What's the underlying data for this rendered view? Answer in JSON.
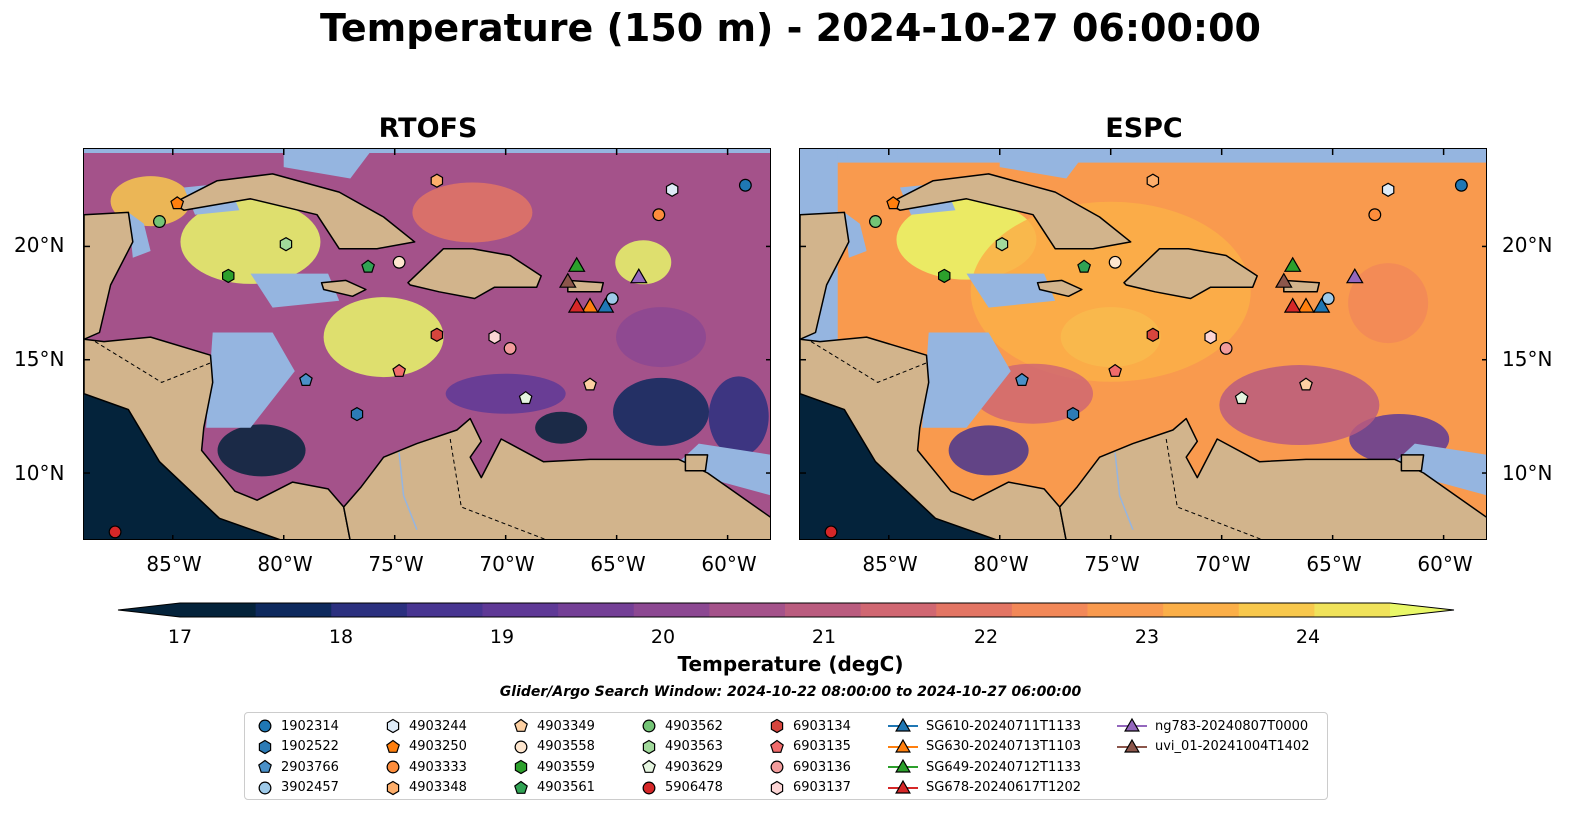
{
  "title": "Temperature (150 m) - 2024-10-27 06:00:00",
  "panels": [
    {
      "title": "RTOFS"
    },
    {
      "title": "ESPC"
    }
  ],
  "lat_labels": [
    "20°N",
    "15°N",
    "10°N"
  ],
  "lon_labels": [
    "85°W",
    "80°W",
    "75°W",
    "70°W",
    "65°W",
    "60°W"
  ],
  "colorbar": {
    "label": "Temperature (degC)",
    "ticks": [
      "17",
      "18",
      "19",
      "20",
      "21",
      "22",
      "23",
      "24"
    ],
    "colors": [
      "#04233b",
      "#0e2a5e",
      "#2b307f",
      "#483591",
      "#5f3996",
      "#743f96",
      "#8c4892",
      "#a4528a",
      "#ba5c7f",
      "#d06772",
      "#e37564",
      "#f28858",
      "#f99a4e",
      "#fbaf48",
      "#f8c84c",
      "#f0e25a",
      "#e9f868"
    ]
  },
  "search_window": "Glider/Argo Search Window: 2024-10-22 08:00:00 to 2024-10-27 06:00:00",
  "legend": [
    {
      "label": "1902314",
      "marker": "circle",
      "color": "#1f77b4"
    },
    {
      "label": "1902522",
      "marker": "hexagon",
      "color": "#2c7bb6"
    },
    {
      "label": "2903766",
      "marker": "pentagon",
      "color": "#4a90c8"
    },
    {
      "label": "3902457",
      "marker": "circle",
      "color": "#9ecae9"
    },
    {
      "label": "4903244",
      "marker": "hexagon",
      "color": "#deebf7"
    },
    {
      "label": "4903250",
      "marker": "pentagon",
      "color": "#ff7f0e"
    },
    {
      "label": "4903333",
      "marker": "circle",
      "color": "#fd8d3c"
    },
    {
      "label": "4903348",
      "marker": "hexagon",
      "color": "#fdae6b"
    },
    {
      "label": "4903349",
      "marker": "pentagon",
      "color": "#fdd0a2"
    },
    {
      "label": "4903558",
      "marker": "circle",
      "color": "#fee6ce"
    },
    {
      "label": "4903559",
      "marker": "hexagon",
      "color": "#2ca02c"
    },
    {
      "label": "4903561",
      "marker": "pentagon",
      "color": "#31a354"
    },
    {
      "label": "4903562",
      "marker": "circle",
      "color": "#74c476"
    },
    {
      "label": "4903563",
      "marker": "hexagon",
      "color": "#a1d99b"
    },
    {
      "label": "4903629",
      "marker": "pentagon",
      "color": "#e5f5e0"
    },
    {
      "label": "5906478",
      "marker": "circle",
      "color": "#d62728"
    },
    {
      "label": "6903134",
      "marker": "hexagon",
      "color": "#d6453d"
    },
    {
      "label": "6903135",
      "marker": "pentagon",
      "color": "#f06b6b"
    },
    {
      "label": "6903136",
      "marker": "circle",
      "color": "#f29c9c"
    },
    {
      "label": "6903137",
      "marker": "hexagon",
      "color": "#fcd5d5"
    },
    {
      "label": "SG610-20240711T1133",
      "marker": "triangle",
      "color": "#1f77b4"
    },
    {
      "label": "SG630-20240713T1103",
      "marker": "triangle",
      "color": "#ff7f0e"
    },
    {
      "label": "SG649-20240712T1133",
      "marker": "triangle",
      "color": "#2ca02c"
    },
    {
      "label": "SG678-20240617T1202",
      "marker": "triangle",
      "color": "#d62728"
    },
    {
      "label": "ng783-20240807T0000",
      "marker": "triangle",
      "color": "#9467bd"
    },
    {
      "label": "uvi_01-20241004T1402",
      "marker": "triangle",
      "color": "#8c564b"
    }
  ],
  "map_extent": {
    "lon": [
      -89,
      -58
    ],
    "lat": [
      7,
      24.3
    ]
  },
  "stations": [
    {
      "id": "1902314",
      "lon": -59.2,
      "lat": 22.7
    },
    {
      "id": "1902522",
      "lon": -76.7,
      "lat": 12.6
    },
    {
      "id": "2903766",
      "lon": -79.0,
      "lat": 14.1
    },
    {
      "id": "3902457",
      "lon": -65.2,
      "lat": 17.7
    },
    {
      "id": "4903244",
      "lon": -62.5,
      "lat": 22.5
    },
    {
      "id": "4903250",
      "lon": -84.8,
      "lat": 21.9
    },
    {
      "id": "4903333",
      "lon": -63.1,
      "lat": 21.4
    },
    {
      "id": "4903348",
      "lon": -73.1,
      "lat": 22.9
    },
    {
      "id": "4903349",
      "lon": -66.2,
      "lat": 13.9
    },
    {
      "id": "4903558",
      "lon": -74.8,
      "lat": 19.3
    },
    {
      "id": "4903559",
      "lon": -82.5,
      "lat": 18.7
    },
    {
      "id": "4903561",
      "lon": -76.2,
      "lat": 19.1
    },
    {
      "id": "4903562",
      "lon": -85.6,
      "lat": 21.1
    },
    {
      "id": "4903563",
      "lon": -79.9,
      "lat": 20.1
    },
    {
      "id": "4903629",
      "lon": -69.1,
      "lat": 13.3
    },
    {
      "id": "5906478",
      "lon": -87.6,
      "lat": 7.4
    },
    {
      "id": "6903134",
      "lon": -73.1,
      "lat": 16.1
    },
    {
      "id": "6903135",
      "lon": -74.8,
      "lat": 14.5
    },
    {
      "id": "6903136",
      "lon": -69.8,
      "lat": 15.5
    },
    {
      "id": "6903137",
      "lon": -70.5,
      "lat": 16.0
    },
    {
      "id": "SG610-20240711T1133",
      "lon": -65.5,
      "lat": 17.3
    },
    {
      "id": "SG630-20240713T1103",
      "lon": -66.2,
      "lat": 17.3
    },
    {
      "id": "SG649-20240712T1133",
      "lon": -66.8,
      "lat": 19.1
    },
    {
      "id": "SG678-20240617T1202",
      "lon": -66.8,
      "lat": 17.3
    },
    {
      "id": "ng783-20240807T0000",
      "lon": -64.0,
      "lat": 18.6
    },
    {
      "id": "uvi_01-20241004T1402",
      "lon": -67.2,
      "lat": 18.4
    }
  ]
}
